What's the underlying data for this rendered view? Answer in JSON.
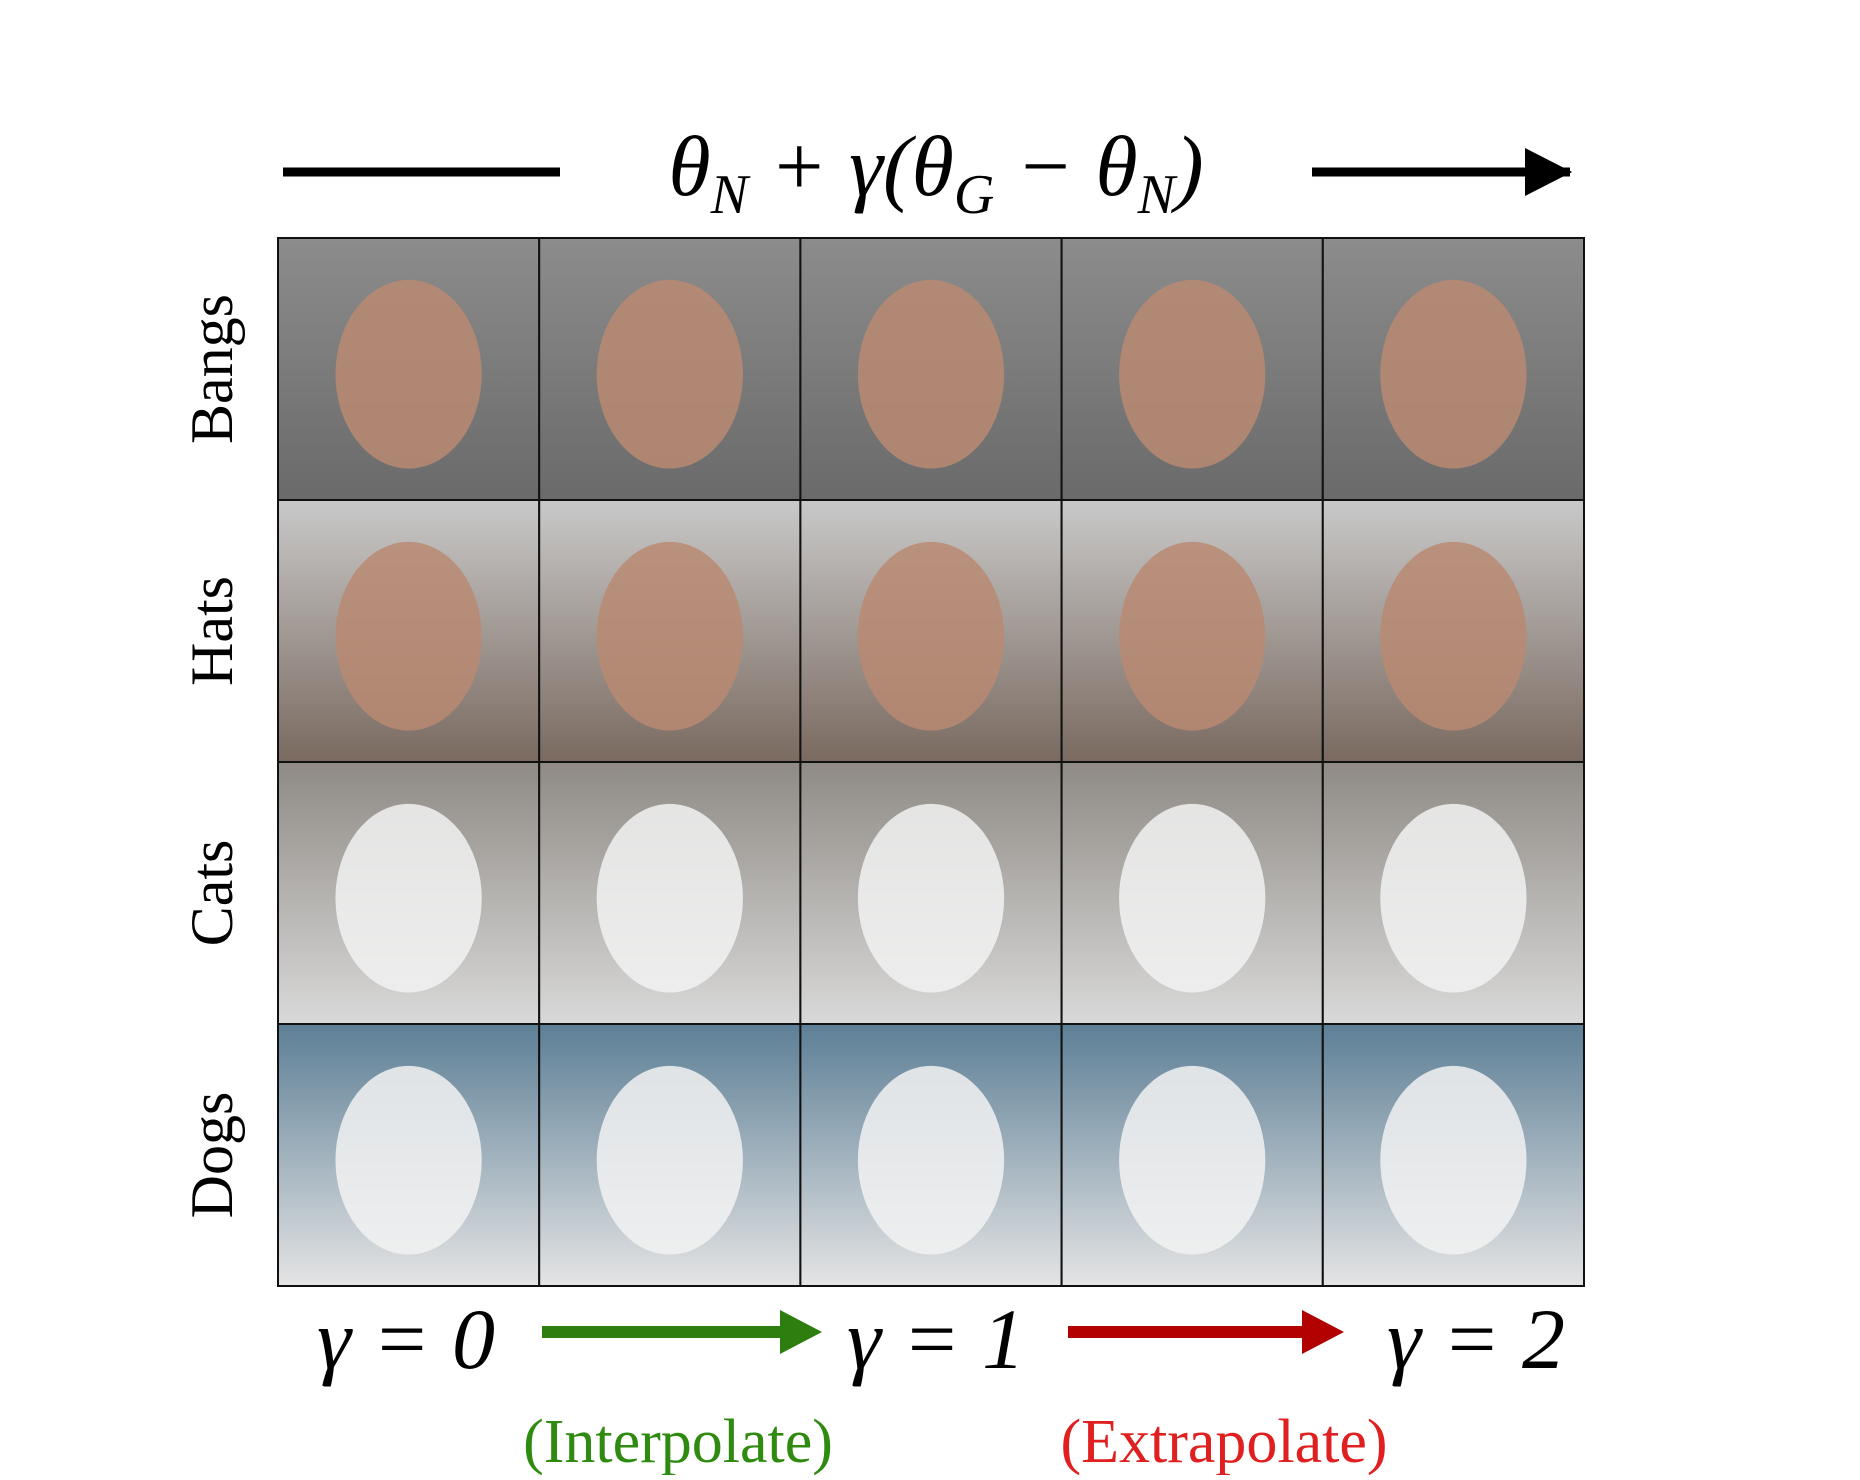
{
  "figure": {
    "formula": [
      "θ",
      "N",
      " + γ(θ",
      "G",
      " − θ",
      "N",
      ")"
    ],
    "rows": [
      "Bangs",
      "Hats",
      "Cats",
      "Dogs"
    ],
    "gammas": [
      "γ = 0",
      "γ = 1",
      "γ = 2"
    ],
    "interpolate": "(Interpolate)",
    "extrapolate": "(Extrapolate)"
  }
}
